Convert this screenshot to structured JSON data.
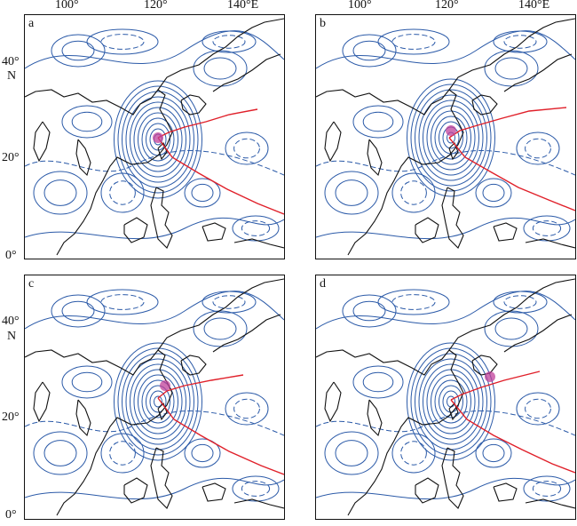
{
  "axes": {
    "lon_labels": [
      "100°",
      "120°",
      "140°E"
    ],
    "lat_labels": [
      "40°",
      "N",
      "20°",
      "0°"
    ]
  },
  "panels": [
    {
      "label": "a"
    },
    {
      "label": "b"
    },
    {
      "label": "c"
    },
    {
      "label": "d"
    }
  ],
  "colors": {
    "contour": "#2b5aa8",
    "coastline": "#111111",
    "track": "#e0202a",
    "marker": "#c0409a"
  },
  "icons": {
    "typhoon_center": "typhoon-center-marker-icon"
  }
}
